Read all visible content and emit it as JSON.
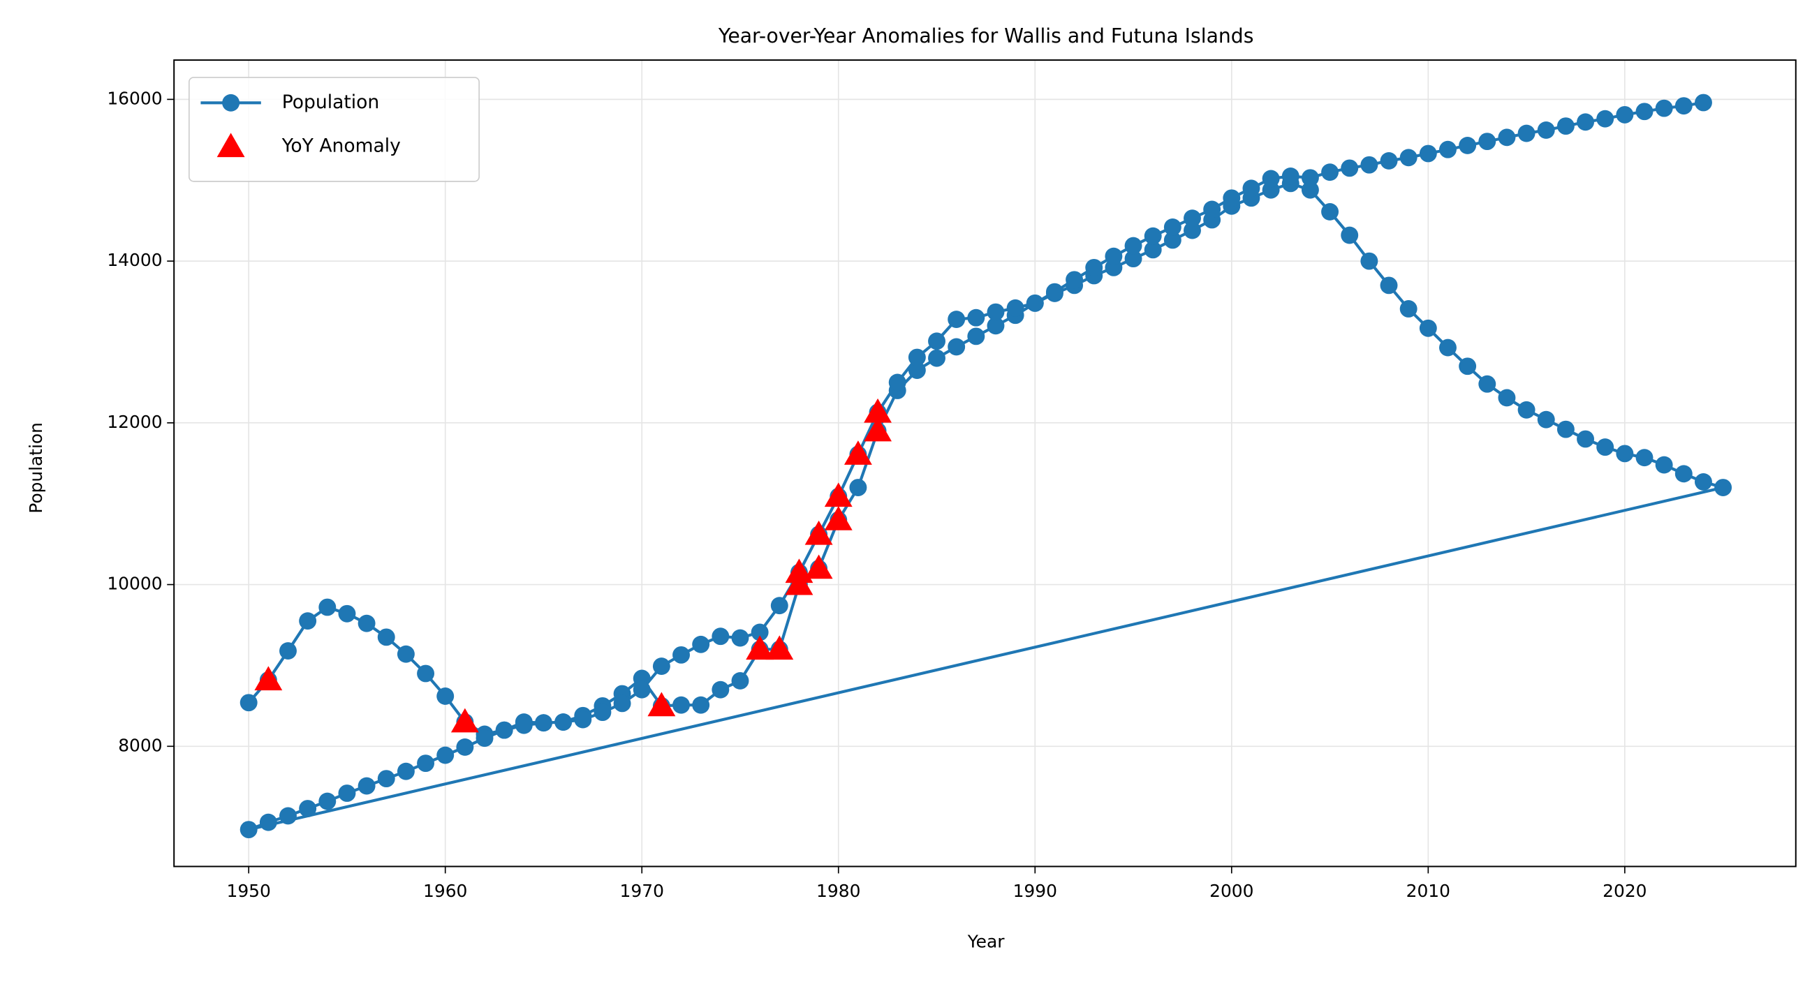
{
  "chart_data": {
    "type": "line",
    "title": "Year-over-Year Anomalies for Wallis and Futuna Islands",
    "x_label": "Year",
    "y_label": "Population",
    "xlim": [
      1946.2,
      2028.7
    ],
    "ylim": [
      6514,
      16486
    ],
    "xticks": [
      1950,
      1960,
      1970,
      1980,
      1990,
      2000,
      2010,
      2020
    ],
    "yticks": [
      8000,
      10000,
      12000,
      14000,
      16000
    ],
    "grid": true,
    "legend": "upper left",
    "series": [
      {
        "name": "Population",
        "color": "#1f77b4",
        "marker": "circle",
        "line": true,
        "x": [
          1950,
          1951,
          1952,
          1953,
          1954,
          1955,
          1956,
          1957,
          1958,
          1959,
          1960,
          1961,
          1962,
          1963,
          1964,
          1965,
          1966,
          1967,
          1968,
          1969,
          1970,
          1971,
          1972,
          1973,
          1974,
          1975,
          1976,
          1977,
          1978,
          1979,
          1980,
          1981,
          1982,
          1983,
          1984,
          1985,
          1986,
          1987,
          1988,
          1989,
          1990,
          1991,
          1992,
          1993,
          1994,
          1995,
          1996,
          1997,
          1998,
          1999,
          2000,
          2001,
          2002,
          2003,
          2004,
          2005,
          2006,
          2007,
          2008,
          2009,
          2010,
          2011,
          2012,
          2013,
          2014,
          2015,
          2016,
          2017,
          2018,
          2019,
          2020,
          2021,
          2022,
          2023,
          2024,
          2025,
          1950,
          1951,
          1952,
          1953,
          1954,
          1955,
          1956,
          1957,
          1958,
          1959,
          1960,
          1961,
          1962,
          1963,
          1964,
          1965,
          1966,
          1967,
          1968,
          1969,
          1970,
          1971,
          1972,
          1973,
          1974,
          1975,
          1976,
          1977,
          1978,
          1979,
          1980,
          1981,
          1982,
          1983,
          1984,
          1985,
          1986,
          1987,
          1988,
          1989,
          1990,
          1991,
          1992,
          1993,
          1994,
          1995,
          1996,
          1997,
          1998,
          1999,
          2000,
          2001,
          2002,
          2003,
          2004,
          2005,
          2006,
          2007,
          2008,
          2009,
          2010,
          2011,
          2012,
          2013,
          2014,
          2015,
          2016,
          2017,
          2018,
          2019,
          2020,
          2021,
          2022,
          2023,
          2024
        ],
        "values": [
          8540,
          8820,
          9180,
          9550,
          9720,
          9640,
          9520,
          9350,
          9140,
          8900,
          8620,
          8300,
          8150,
          8200,
          8300,
          8290,
          8300,
          8380,
          8500,
          8650,
          8840,
          8500,
          8510,
          8510,
          8700,
          8810,
          9200,
          9200,
          10000,
          10200,
          10800,
          11200,
          11900,
          12400,
          12650,
          12800,
          12940,
          13070,
          13200,
          13330,
          13480,
          13600,
          13700,
          13820,
          13920,
          14030,
          14140,
          14260,
          14380,
          14510,
          14680,
          14780,
          14880,
          14960,
          14880,
          14610,
          14320,
          14000,
          13700,
          13410,
          13170,
          12930,
          12700,
          12480,
          12310,
          12160,
          12040,
          11920,
          11800,
          11700,
          11620,
          11570,
          11480,
          11370,
          11270,
          11200,
          6970,
          7060,
          7140,
          7230,
          7320,
          7420,
          7510,
          7600,
          7690,
          7790,
          7890,
          7990,
          8100,
          8200,
          8260,
          8290,
          8300,
          8330,
          8420,
          8530,
          8700,
          8990,
          9130,
          9260,
          9360,
          9340,
          9410,
          9740,
          10150,
          10620,
          11090,
          11610,
          12130,
          12500,
          12810,
          13010,
          13280,
          13300,
          13370,
          13420,
          13480,
          13620,
          13770,
          13920,
          14060,
          14190,
          14310,
          14420,
          14530,
          14640,
          14780,
          14900,
          15020,
          15050,
          15030,
          15100,
          15150,
          15190,
          15240,
          15280,
          15330,
          15380,
          15430,
          15480,
          15530,
          15580,
          15620,
          15670,
          15720,
          15760,
          15810,
          15850,
          15890,
          15920,
          15960
        ]
      },
      {
        "name": "YoY Anomaly",
        "color": "#ff0000",
        "marker": "triangle",
        "line": false,
        "x": [
          1951,
          1961,
          1971,
          1976,
          1977,
          1978,
          1978,
          1979,
          1979,
          1980,
          1980,
          1981,
          1982,
          1982
        ],
        "values": [
          8820,
          8300,
          8500,
          9200,
          9200,
          10000,
          10150,
          10200,
          10620,
          10800,
          11090,
          11610,
          11900,
          12130
        ]
      }
    ]
  }
}
